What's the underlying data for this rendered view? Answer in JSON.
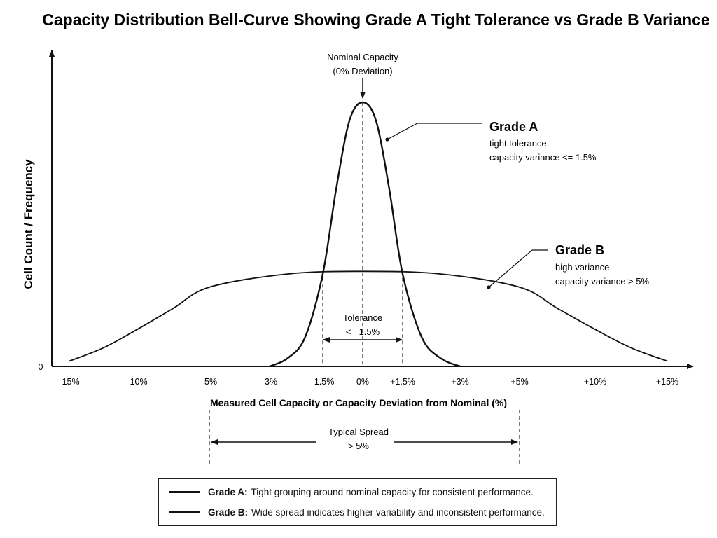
{
  "chart_data": {
    "type": "line",
    "title": "Capacity Distribution Bell-Curve Showing Grade A Tight Tolerance vs Grade B Variance",
    "xlabel": "Measured Cell Capacity or Capacity Deviation from Nominal (%)",
    "ylabel": "Cell Count / Frequency",
    "y_zero_label": "0",
    "x_ticks": [
      {
        "value": -15,
        "label": "-15%"
      },
      {
        "value": -10,
        "label": "-10%"
      },
      {
        "value": -5,
        "label": "-5%"
      },
      {
        "value": -3,
        "label": "-3%"
      },
      {
        "value": -1.5,
        "label": "-1.5%"
      },
      {
        "value": 0,
        "label": "0%"
      },
      {
        "value": 1.5,
        "label": "+1.5%"
      },
      {
        "value": 3,
        "label": "+3%"
      },
      {
        "value": 5,
        "label": "+5%"
      },
      {
        "value": 10,
        "label": "+10%"
      },
      {
        "value": 15,
        "label": "+15%"
      }
    ],
    "xlim": [
      -15.5,
      16
    ],
    "ylim": [
      0,
      1.05
    ],
    "grid": false,
    "series": [
      {
        "name": "Grade A",
        "x": [
          -3,
          -2.5,
          -2,
          -1.5,
          -1,
          -0.5,
          0,
          0.5,
          1,
          1.5,
          2,
          2.5,
          3
        ],
        "values": [
          0.0,
          0.03,
          0.11,
          0.35,
          0.67,
          0.93,
          1.0,
          0.93,
          0.67,
          0.35,
          0.11,
          0.03,
          0.0
        ]
      },
      {
        "name": "Grade B",
        "x": [
          -15,
          -12.5,
          -10,
          -7.5,
          -5,
          -2.5,
          0,
          2.5,
          5,
          7.5,
          10,
          12.5,
          15
        ],
        "values": [
          0.02,
          0.07,
          0.14,
          0.22,
          0.3,
          0.35,
          0.36,
          0.35,
          0.3,
          0.22,
          0.14,
          0.07,
          0.02
        ]
      }
    ],
    "annotations": {
      "nominal_line1": "Nominal Capacity",
      "nominal_line2": "(0% Deviation)",
      "tolerance_line1": "Tolerance",
      "tolerance_line2": "<= 1.5%",
      "spread_line1": "Typical Spread",
      "spread_line2": "> 5%"
    },
    "callouts": {
      "grade_a": {
        "title": "Grade A",
        "line1": "tight tolerance",
        "line2": "capacity variance <= 1.5%"
      },
      "grade_b": {
        "title": "Grade B",
        "line1": "high variance",
        "line2": "capacity variance > 5%"
      }
    }
  },
  "legend": {
    "grade_a_name": "Grade A:",
    "grade_a_text": "Tight grouping around nominal capacity for consistent performance.",
    "grade_b_name": "Grade B:",
    "grade_b_text": "Wide spread indicates higher variability and inconsistent performance."
  }
}
